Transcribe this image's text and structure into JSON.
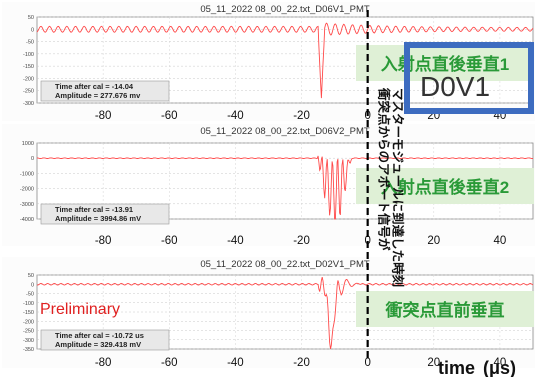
{
  "figure": {
    "xlabel": "time",
    "xunit": "(μs)",
    "preliminary": "Preliminary",
    "vertical_annotation": [
      "衝突点からのアボート信号が",
      "マスターモジュールに到達した時刻"
    ],
    "box_text": "D0V1",
    "accent_color": "#3d6cc0",
    "label_color": "#2a9a38",
    "trace_color": "#ff4a4a"
  },
  "chart_data": [
    {
      "type": "line",
      "title": "05_11_2022 08_00_22.txt_D06V1_PMT",
      "label": "入射点直後垂直1",
      "xlim": [
        -100,
        50
      ],
      "xticks": [
        -80,
        -60,
        -40,
        -20,
        0,
        20,
        40
      ],
      "ylim": [
        -300,
        50
      ],
      "yticks": [
        50,
        0,
        -50,
        -100,
        -150,
        -200,
        -250,
        -300
      ],
      "info": [
        "Time after cal = -14.04",
        "Amplitude = 277.676 mv"
      ],
      "features": {
        "baseline": 0,
        "ripple": 12,
        "spike_x": -14,
        "spike_min": -280
      }
    },
    {
      "type": "line",
      "title": "05_11_2022 08_00_22.txt_D06V2_PMT",
      "label": "入射点直後垂直2",
      "xlim": [
        -100,
        50
      ],
      "xticks": [
        -80,
        -60,
        -40,
        -20,
        0,
        20,
        40
      ],
      "ylim": [
        -4000,
        1000
      ],
      "yticks": [
        1000,
        0,
        -1000,
        -2000,
        -3000,
        -4000
      ],
      "info": [
        "Time after cal = -13.91",
        "Amplitude = 3994.86 mV"
      ],
      "features": {
        "baseline": 0,
        "burst_start": -15,
        "burst_end": -5,
        "burst_min": -4000
      }
    },
    {
      "type": "line",
      "title": "05_11_2022 08_00_22.txt_D02V1_PMT",
      "label": "衝突点直前垂直",
      "xlim": [
        -100,
        50
      ],
      "xticks": [
        -80,
        -60,
        -40,
        -20,
        0,
        20,
        40
      ],
      "ylim": [
        -350,
        50
      ],
      "yticks": [
        50,
        0,
        -50,
        -100,
        -150,
        -200,
        -250,
        -300,
        -350
      ],
      "info": [
        "Time after cal = -10.72 us",
        "Amplitude = 329.418 mV"
      ],
      "features": {
        "baseline": 0,
        "spike_x": -11,
        "spike_min": -330
      }
    }
  ]
}
